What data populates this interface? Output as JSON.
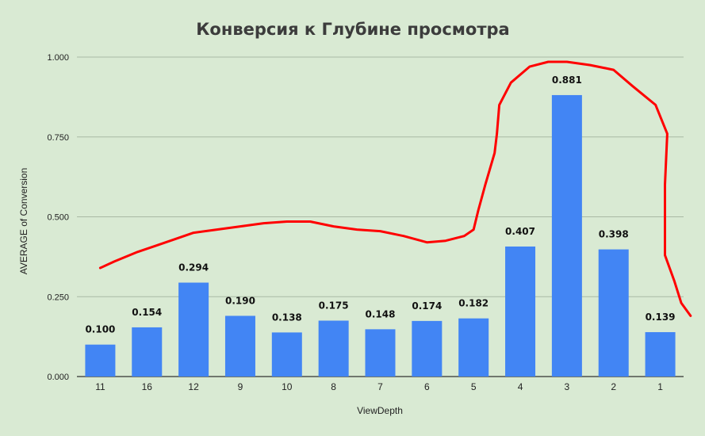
{
  "chart_data": {
    "type": "bar",
    "title": "Конверсия к Глубине просмотра",
    "xlabel": "ViewDepth",
    "ylabel": "AVERAGE of Conversion",
    "categories": [
      "11",
      "16",
      "12",
      "9",
      "10",
      "8",
      "7",
      "6",
      "5",
      "4",
      "3",
      "2",
      "1"
    ],
    "values": [
      0.1,
      0.154,
      0.294,
      0.19,
      0.138,
      0.175,
      0.148,
      0.174,
      0.182,
      0.407,
      0.881,
      0.398,
      0.139
    ],
    "data_labels": [
      "0.100",
      "0.154",
      "0.294",
      "0.190",
      "0.138",
      "0.175",
      "0.148",
      "0.174",
      "0.182",
      "0.407",
      "0.881",
      "0.398",
      "0.139"
    ],
    "yticks": [
      0,
      0.25,
      0.5,
      0.75,
      1.0
    ],
    "ytick_labels": [
      "0.000",
      "0.250",
      "0.500",
      "0.750",
      "1.000"
    ],
    "ylim": [
      0,
      1.0
    ],
    "grid": true,
    "legend": "none",
    "bar_color": "#4285f4",
    "annotation": {
      "type": "hand-drawn-curve",
      "color": "#ff0000",
      "points": [
        [
          0,
          0.34
        ],
        [
          0.3,
          0.36
        ],
        [
          0.8,
          0.39
        ],
        [
          1.2,
          0.41
        ],
        [
          1.6,
          0.43
        ],
        [
          2,
          0.45
        ],
        [
          2.5,
          0.46
        ],
        [
          3,
          0.47
        ],
        [
          3.5,
          0.48
        ],
        [
          4,
          0.485
        ],
        [
          4.5,
          0.485
        ],
        [
          5,
          0.47
        ],
        [
          5.5,
          0.46
        ],
        [
          6,
          0.455
        ],
        [
          6.5,
          0.44
        ],
        [
          7,
          0.42
        ],
        [
          7.4,
          0.425
        ],
        [
          7.8,
          0.44
        ],
        [
          8,
          0.46
        ],
        [
          8.1,
          0.52
        ],
        [
          8.25,
          0.6
        ],
        [
          8.45,
          0.7
        ],
        [
          8.5,
          0.76
        ],
        [
          8.55,
          0.85
        ],
        [
          8.8,
          0.92
        ],
        [
          9.2,
          0.97
        ],
        [
          9.6,
          0.985
        ],
        [
          10,
          0.985
        ],
        [
          10.5,
          0.975
        ],
        [
          11,
          0.96
        ],
        [
          11.4,
          0.91
        ],
        [
          11.9,
          0.85
        ],
        [
          12.15,
          0.76
        ],
        [
          12.1,
          0.6
        ],
        [
          12.1,
          0.38
        ],
        [
          12.3,
          0.3
        ],
        [
          12.45,
          0.23
        ],
        [
          12.65,
          0.19
        ]
      ]
    }
  }
}
